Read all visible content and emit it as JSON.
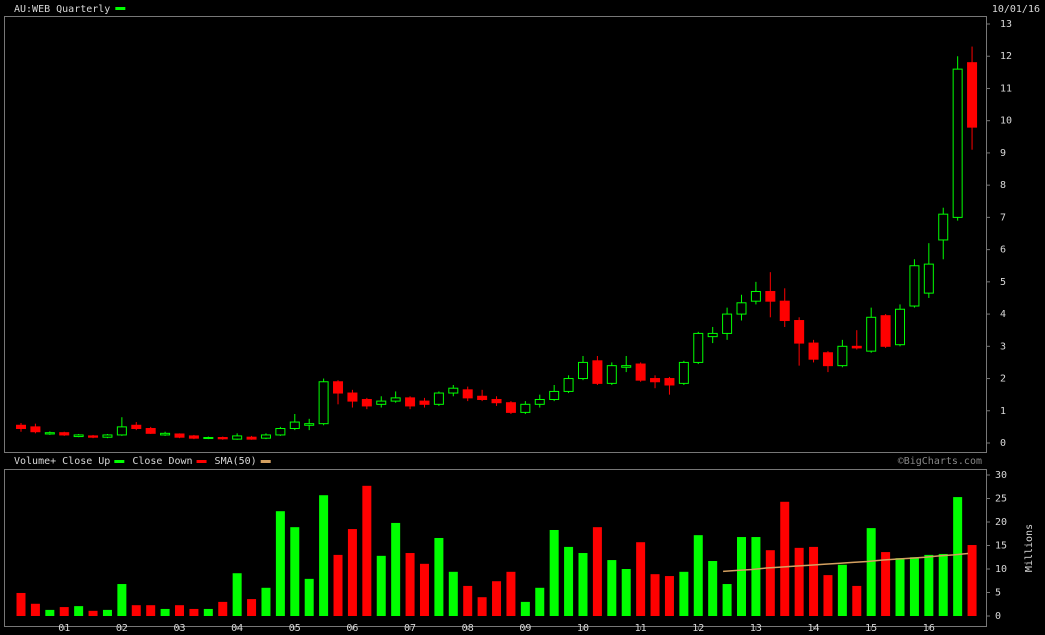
{
  "chart_data": [
    {
      "type": "candlestick",
      "title": "AU:WEB Quarterly",
      "date": "10/01/16",
      "title_color": "#00ff00",
      "up_color": "#00ff00",
      "down_color": "#ff0000",
      "open": [
        0.55,
        0.5,
        0.28,
        0.32,
        0.2,
        0.22,
        0.18,
        0.25,
        0.55,
        0.45,
        0.25,
        0.28,
        0.22,
        0.15,
        0.17,
        0.12,
        0.18,
        0.15,
        0.25,
        0.45,
        0.55,
        0.6,
        1.9,
        1.55,
        1.35,
        1.2,
        1.3,
        1.4,
        1.3,
        1.2,
        1.55,
        1.65,
        1.45,
        1.35,
        1.25,
        0.95,
        1.2,
        1.35,
        1.6,
        2.0,
        2.55,
        1.85,
        2.35,
        2.45,
        2.0,
        2.0,
        1.85,
        2.5,
        3.3,
        3.4,
        4.0,
        4.4,
        4.7,
        4.4,
        3.8,
        3.1,
        2.8,
        2.4,
        3.0,
        2.85,
        3.95,
        3.05,
        4.25,
        4.65,
        6.3,
        7.0,
        11.8
      ],
      "high": [
        0.62,
        0.6,
        0.36,
        0.35,
        0.28,
        0.25,
        0.28,
        0.8,
        0.65,
        0.5,
        0.35,
        0.3,
        0.25,
        0.2,
        0.2,
        0.3,
        0.22,
        0.3,
        0.5,
        0.9,
        0.75,
        2.0,
        1.95,
        1.65,
        1.4,
        1.45,
        1.6,
        1.45,
        1.4,
        1.6,
        1.8,
        1.75,
        1.65,
        1.45,
        1.3,
        1.3,
        1.5,
        1.8,
        2.1,
        2.7,
        2.7,
        2.5,
        2.7,
        2.5,
        2.1,
        2.05,
        2.55,
        3.45,
        3.6,
        4.2,
        4.6,
        5.0,
        5.3,
        4.8,
        3.9,
        3.2,
        2.85,
        3.2,
        3.5,
        4.2,
        4.0,
        4.3,
        5.7,
        6.2,
        7.3,
        12.0,
        12.3
      ],
      "low": [
        0.35,
        0.3,
        0.25,
        0.22,
        0.18,
        0.15,
        0.15,
        0.22,
        0.4,
        0.28,
        0.22,
        0.15,
        0.12,
        0.12,
        0.1,
        0.1,
        0.1,
        0.12,
        0.22,
        0.4,
        0.4,
        0.55,
        1.2,
        1.1,
        1.05,
        1.1,
        1.25,
        1.05,
        1.1,
        1.15,
        1.45,
        1.3,
        1.3,
        1.15,
        0.9,
        0.9,
        1.1,
        1.3,
        1.55,
        1.95,
        1.8,
        1.8,
        2.2,
        1.9,
        1.7,
        1.5,
        1.8,
        2.45,
        3.1,
        3.2,
        3.8,
        4.3,
        3.9,
        3.6,
        2.4,
        2.5,
        2.2,
        2.35,
        2.9,
        2.8,
        2.95,
        3.0,
        4.2,
        4.5,
        5.7,
        6.9,
        9.1
      ],
      "close": [
        0.45,
        0.35,
        0.32,
        0.25,
        0.25,
        0.18,
        0.25,
        0.5,
        0.45,
        0.3,
        0.3,
        0.18,
        0.15,
        0.17,
        0.13,
        0.22,
        0.12,
        0.25,
        0.45,
        0.65,
        0.6,
        1.9,
        1.55,
        1.3,
        1.15,
        1.3,
        1.4,
        1.15,
        1.2,
        1.55,
        1.7,
        1.4,
        1.35,
        1.25,
        0.95,
        1.2,
        1.35,
        1.6,
        2.0,
        2.5,
        1.85,
        2.4,
        2.4,
        1.95,
        1.9,
        1.8,
        2.5,
        3.4,
        3.4,
        4.0,
        4.35,
        4.7,
        4.4,
        3.8,
        3.1,
        2.6,
        2.4,
        3.0,
        2.95,
        3.9,
        3.0,
        4.15,
        5.5,
        5.55,
        7.1,
        11.6,
        9.8
      ],
      "ylim": [
        0,
        13
      ],
      "yticks": [
        0,
        1,
        2,
        3,
        4,
        5,
        6,
        7,
        8,
        9,
        10,
        11,
        12,
        13
      ]
    },
    {
      "type": "bar",
      "title": "Volume+",
      "watermark": "©BigCharts.com",
      "ylabel": "Millions",
      "categories": [
        null,
        null,
        null,
        "01",
        null,
        null,
        null,
        "02",
        null,
        null,
        null,
        "03",
        null,
        null,
        null,
        "04",
        null,
        null,
        null,
        "05",
        null,
        null,
        null,
        "06",
        null,
        null,
        null,
        "07",
        null,
        null,
        null,
        "08",
        null,
        null,
        null,
        "09",
        null,
        null,
        null,
        "10",
        null,
        null,
        null,
        "11",
        null,
        null,
        null,
        "12",
        null,
        null,
        null,
        "13",
        null,
        null,
        null,
        "14",
        null,
        null,
        null,
        "15",
        null,
        null,
        null,
        "16",
        null,
        null,
        null
      ],
      "values": [
        4.9,
        2.6,
        1.3,
        1.9,
        2.1,
        1.1,
        1.3,
        6.8,
        2.3,
        2.3,
        1.5,
        2.3,
        1.5,
        1.5,
        3.0,
        9.1,
        3.6,
        6.0,
        22.3,
        18.9,
        7.9,
        25.7,
        13.0,
        18.5,
        27.7,
        12.8,
        19.8,
        13.4,
        11.1,
        16.6,
        9.4,
        6.4,
        4.0,
        7.4,
        9.4,
        3.0,
        6.0,
        18.3,
        14.7,
        13.4,
        18.9,
        11.9,
        10.0,
        15.7,
        8.9,
        8.5,
        9.4,
        17.2,
        11.7,
        6.8,
        16.8,
        16.8,
        14.0,
        24.3,
        14.5,
        14.7,
        8.7,
        10.9,
        6.4,
        18.7,
        13.6,
        12.3,
        12.5,
        13.0,
        13.2,
        25.3,
        15.1
      ],
      "legend": [
        {
          "name": "Close Up",
          "color": "#00ff00"
        },
        {
          "name": "Close Down",
          "color": "#ff0000"
        }
      ],
      "sma": {
        "name": "SMA(50)",
        "color": "#d4a060",
        "values": [
          null,
          null,
          null,
          null,
          null,
          null,
          null,
          null,
          null,
          null,
          null,
          null,
          null,
          null,
          null,
          null,
          null,
          null,
          null,
          null,
          null,
          null,
          null,
          null,
          null,
          null,
          null,
          null,
          null,
          null,
          null,
          null,
          null,
          null,
          null,
          null,
          null,
          null,
          null,
          null,
          null,
          null,
          null,
          null,
          null,
          null,
          null,
          null,
          null,
          9.5,
          9.7,
          9.9,
          10.2,
          10.4,
          10.6,
          10.8,
          11.0,
          11.2,
          11.4,
          11.6,
          11.9,
          12.1,
          12.3,
          12.5,
          12.8,
          13.0,
          13.3
        ]
      },
      "ylim": [
        0,
        30
      ],
      "yticks": [
        0,
        5,
        10,
        15,
        20,
        25,
        30
      ]
    }
  ]
}
